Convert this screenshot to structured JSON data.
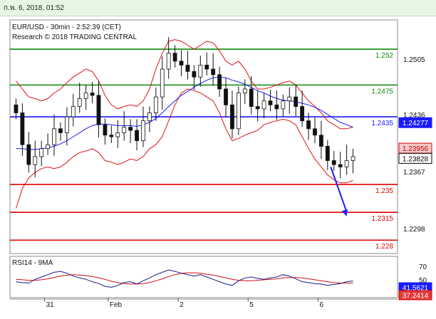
{
  "window": {
    "timestamp": "ก.พ. 6, 2018, 01:52"
  },
  "header": {
    "symbol_line": "EUR/USD - 30min - 2:52:39 (CET)",
    "credit_line": "Research © 2018 TRADING CENTRAL"
  },
  "colors": {
    "resistance": "#0a8a0a",
    "pivot": "#1a1aff",
    "support": "#e00000",
    "bollinger": "#dd1111",
    "moving_average": "#1a1aff",
    "candles": "#111111",
    "arrow": "#1a1aff",
    "rsi_line": "#1a1a8c",
    "rsi_ma": "#cc1111"
  },
  "chart_data": [
    {
      "type": "candlestick",
      "instrument": "EUR/USD",
      "timeframe": "30min",
      "ylim": [
        1.2265,
        1.2555
      ],
      "yticks": [
        "1.2505",
        "1.2436",
        "1.2367",
        "1.2298"
      ],
      "xticks": [
        {
          "label": "31",
          "x": 5
        },
        {
          "label": "Feb",
          "x": 15
        },
        {
          "label": "2",
          "x": 26
        },
        {
          "label": "5",
          "x": 37
        },
        {
          "label": "6",
          "x": 48
        }
      ],
      "x_range": [
        0,
        54
      ],
      "levels": [
        {
          "label": "1.252",
          "value": 1.252,
          "role": "resistance"
        },
        {
          "label": "1.2475",
          "value": 1.2475,
          "role": "resistance"
        },
        {
          "label": "1.2435",
          "value": 1.2435,
          "role": "pivot"
        },
        {
          "label": "1.235",
          "value": 1.235,
          "role": "support"
        },
        {
          "label": "1.2315",
          "value": 1.2315,
          "role": "support"
        },
        {
          "label": "1.228",
          "value": 1.228,
          "role": "support"
        }
      ],
      "price_tags": [
        {
          "label": "1.24277",
          "value": 1.24277,
          "style": "blue"
        },
        {
          "label": "1.23956",
          "value": 1.23956,
          "style": "red"
        },
        {
          "label": "1.23828",
          "value": 1.23828,
          "style": "black"
        }
      ],
      "close": [
        1.244,
        1.24,
        1.2375,
        1.2385,
        1.2395,
        1.24,
        1.242,
        1.2415,
        1.2435,
        1.2448,
        1.2458,
        1.2465,
        1.2462,
        1.2425,
        1.2412,
        1.241,
        1.2415,
        1.2422,
        1.2418,
        1.2405,
        1.243,
        1.244,
        1.246,
        1.2495,
        1.2515,
        1.2505,
        1.25,
        1.2492,
        1.2485,
        1.25,
        1.2495,
        1.2488,
        1.247,
        1.245,
        1.242,
        1.2465,
        1.247,
        1.2448,
        1.2445,
        1.2455,
        1.245,
        1.2445,
        1.2455,
        1.246,
        1.2448,
        1.243,
        1.242,
        1.2412,
        1.2398,
        1.238,
        1.2375,
        1.2372,
        1.238,
        1.2385
      ],
      "bollinger_upper": [
        1.248,
        1.247,
        1.246,
        1.2458,
        1.2455,
        1.2458,
        1.2465,
        1.247,
        1.2478,
        1.2485,
        1.249,
        1.2495,
        1.2492,
        1.248,
        1.2462,
        1.245,
        1.2445,
        1.2448,
        1.245,
        1.2448,
        1.2455,
        1.247,
        1.2495,
        1.2515,
        1.253,
        1.2532,
        1.253,
        1.2525,
        1.252,
        1.2525,
        1.253,
        1.2528,
        1.2518,
        1.2505,
        1.25,
        1.2505,
        1.2495,
        1.248,
        1.247,
        1.247,
        1.2472,
        1.2475,
        1.2478,
        1.248,
        1.2475,
        1.2465,
        1.2455,
        1.2448,
        1.244,
        1.243,
        1.2425,
        1.242,
        1.242,
        1.2422
      ],
      "bollinger_lower": [
        1.232,
        1.2345,
        1.2358,
        1.2365,
        1.237,
        1.2372,
        1.237,
        1.2372,
        1.2378,
        1.2385,
        1.239,
        1.2392,
        1.2395,
        1.239,
        1.238,
        1.2378,
        1.2375,
        1.2378,
        1.2382,
        1.238,
        1.2385,
        1.2395,
        1.24,
        1.241,
        1.243,
        1.245,
        1.2465,
        1.247,
        1.2468,
        1.2465,
        1.246,
        1.2455,
        1.244,
        1.242,
        1.2405,
        1.2408,
        1.2412,
        1.2415,
        1.2418,
        1.2425,
        1.2428,
        1.243,
        1.2432,
        1.243,
        1.2425,
        1.241,
        1.2395,
        1.2382,
        1.2372,
        1.2362,
        1.2356,
        1.2352,
        1.2352,
        1.2355
      ],
      "moving_average": [
        1.2395,
        1.2395,
        1.2394,
        1.2394,
        1.2395,
        1.2396,
        1.2398,
        1.2401,
        1.2405,
        1.241,
        1.2415,
        1.242,
        1.2424,
        1.2426,
        1.2426,
        1.2425,
        1.2424,
        1.2424,
        1.2424,
        1.2423,
        1.2425,
        1.2428,
        1.2433,
        1.244,
        1.2448,
        1.2455,
        1.2462,
        1.2467,
        1.2472,
        1.2477,
        1.2481,
        1.2484,
        1.2485,
        1.2484,
        1.2481,
        1.2479,
        1.2476,
        1.2472,
        1.2468,
        1.2465,
        1.2461,
        1.2458,
        1.2456,
        1.2455,
        1.2454,
        1.2452,
        1.245,
        1.2447,
        1.2443,
        1.2438,
        1.2433,
        1.2428,
        1.2425,
        1.2422
      ],
      "forecast_arrow": {
        "from": {
          "x": 50,
          "value": 1.2372
        },
        "to": {
          "x": 52.5,
          "value": 1.231
        }
      }
    },
    {
      "type": "line",
      "title": "RSI14 - 9MA",
      "ylim": [
        0,
        100
      ],
      "yticks": [
        "70",
        "50"
      ],
      "current_values": [
        {
          "label": "41.5621",
          "value": 41.5621,
          "style": "blue"
        },
        {
          "label": "37.2414",
          "value": 37.2414,
          "style": "red"
        }
      ],
      "rsi": [
        40,
        38,
        37,
        45,
        50,
        55,
        60,
        62,
        58,
        52,
        48,
        45,
        40,
        36,
        30,
        28,
        32,
        38,
        40,
        35,
        42,
        48,
        55,
        60,
        65,
        62,
        58,
        55,
        52,
        55,
        50,
        45,
        40,
        35,
        32,
        42,
        48,
        50,
        47,
        45,
        48,
        50,
        55,
        52,
        46,
        40,
        38,
        36,
        35,
        32,
        34,
        36,
        40,
        41.5621
      ],
      "ma": [
        45,
        44,
        43,
        43,
        44,
        46,
        49,
        52,
        54,
        55,
        54,
        53,
        51,
        48,
        45,
        41,
        38,
        36,
        35,
        35,
        36,
        38,
        42,
        46,
        51,
        55,
        58,
        59,
        59,
        58,
        56,
        54,
        51,
        48,
        45,
        43,
        42,
        42,
        43,
        44,
        45,
        46,
        48,
        49,
        49,
        48,
        46,
        44,
        42,
        40,
        38,
        37,
        37,
        37.2414
      ]
    }
  ]
}
